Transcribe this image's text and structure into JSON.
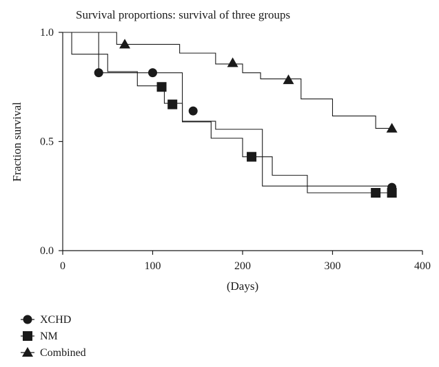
{
  "chart_data": {
    "type": "line",
    "subtype": "kaplan-meier step",
    "title": "Survival proportions: survival of three groups",
    "xlabel": "(Days)",
    "ylabel": "Fraction survival",
    "xlim": [
      0,
      400
    ],
    "ylim": [
      0,
      1
    ],
    "x_ticks": [
      0,
      100,
      200,
      300,
      400
    ],
    "x_tick_labels": [
      "0",
      "100",
      "200",
      "300",
      "400"
    ],
    "y_ticks": [
      0,
      0.5,
      1
    ],
    "y_tick_labels": [
      "0.0",
      "0.5",
      "1.0"
    ],
    "grid": false,
    "legend_position": "bottom-left",
    "series": [
      {
        "name": "XCHD",
        "marker": "circle",
        "steps": [
          [
            0,
            1.0
          ],
          [
            40,
            0.815
          ],
          [
            133,
            0.593
          ],
          [
            170,
            0.556
          ],
          [
            222,
            0.296
          ],
          [
            366,
            0.296
          ]
        ],
        "markers": [
          [
            40,
            0.815
          ],
          [
            100,
            0.815
          ],
          [
            145,
            0.64
          ],
          [
            366,
            0.29
          ]
        ]
      },
      {
        "name": "NM",
        "marker": "square",
        "steps": [
          [
            0,
            1.0
          ],
          [
            10,
            0.9
          ],
          [
            50,
            0.82
          ],
          [
            83,
            0.755
          ],
          [
            113,
            0.675
          ],
          [
            133,
            0.59
          ],
          [
            165,
            0.515
          ],
          [
            200,
            0.43
          ],
          [
            233,
            0.345
          ],
          [
            272,
            0.265
          ],
          [
            366,
            0.265
          ]
        ],
        "markers": [
          [
            110,
            0.75
          ],
          [
            122,
            0.67
          ],
          [
            210,
            0.43
          ],
          [
            348,
            0.265
          ],
          [
            366,
            0.265
          ]
        ]
      },
      {
        "name": "Combined",
        "marker": "triangle",
        "steps": [
          [
            0,
            1.0
          ],
          [
            60,
            0.945
          ],
          [
            130,
            0.905
          ],
          [
            170,
            0.855
          ],
          [
            200,
            0.815
          ],
          [
            220,
            0.787
          ],
          [
            265,
            0.695
          ],
          [
            300,
            0.617
          ],
          [
            348,
            0.56
          ],
          [
            366,
            0.56
          ]
        ],
        "markers": [
          [
            69,
            0.945
          ],
          [
            189,
            0.86
          ],
          [
            251,
            0.782
          ],
          [
            366,
            0.56
          ]
        ]
      }
    ]
  }
}
